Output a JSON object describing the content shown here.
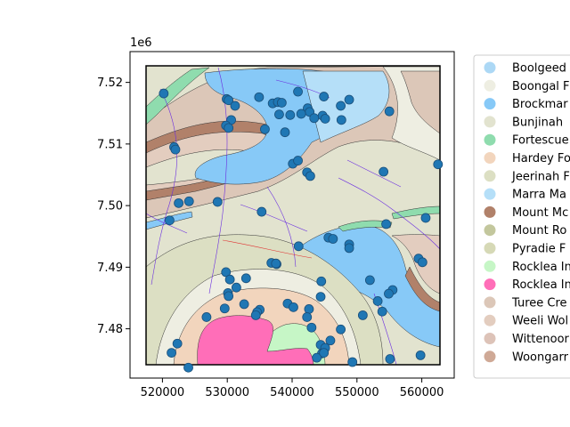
{
  "figure": {
    "axis_offset_label": "1e6",
    "x_ticks": [
      "520000",
      "530000",
      "540000",
      "550000",
      "560000"
    ],
    "y_ticks": [
      "7.48",
      "7.49",
      "7.50",
      "7.51",
      "7.52"
    ]
  },
  "legend": {
    "placement": "right, outside axes (clipped by figure edge)",
    "items": [
      {
        "label": "Boolgeed",
        "color": "#acd8f5"
      },
      {
        "label": "Boongal F",
        "color": "#eeeee2"
      },
      {
        "label": "Brockmar",
        "color": "#87c9f7"
      },
      {
        "label": "Bunjinah",
        "color": "#e2e3cf"
      },
      {
        "label": "Fortescue",
        "color": "#8fdcae"
      },
      {
        "label": "Hardey Fo",
        "color": "#f2d5bd"
      },
      {
        "label": "Jeerinah F",
        "color": "#dcdfc3"
      },
      {
        "label": "Marra Ma",
        "color": "#b5dff8"
      },
      {
        "label": "Mount Mc",
        "color": "#b1816a"
      },
      {
        "label": "Mount Ro",
        "color": "#c3c79d"
      },
      {
        "label": "Pyradie F",
        "color": "#d6d9b6"
      },
      {
        "label": "Rocklea In",
        "color": "#c6f6c6"
      },
      {
        "label": "Rocklea In",
        "color": "#ff6eb8"
      },
      {
        "label": "Turee Cre",
        "color": "#dcc7b8"
      },
      {
        "label": "Weeli Wol",
        "color": "#e3cdbf"
      },
      {
        "label": "Wittenoor",
        "color": "#ddc3b8"
      },
      {
        "label": "Woongarr",
        "color": "#cfa996"
      }
    ]
  },
  "chart_data": {
    "type": "scatter",
    "title": "",
    "xlabel": "",
    "ylabel": "",
    "x_range": [
      515000,
      565000
    ],
    "y_range": [
      7472000,
      7525000
    ],
    "map_extent": {
      "x": [
        515800,
        562500
      ],
      "y": [
        7473600,
        7521300
      ]
    },
    "point_color": "#1f77b4",
    "points": [
      [
        520200,
        7518200
      ],
      [
        529900,
        7517300
      ],
      [
        530200,
        7517100
      ],
      [
        531200,
        7516200
      ],
      [
        534900,
        7517600
      ],
      [
        537000,
        7516600
      ],
      [
        537800,
        7516800
      ],
      [
        538400,
        7516700
      ],
      [
        540900,
        7518500
      ],
      [
        544900,
        7517700
      ],
      [
        548800,
        7517200
      ],
      [
        547500,
        7516200
      ],
      [
        542400,
        7515800
      ],
      [
        542700,
        7515200
      ],
      [
        544700,
        7514600
      ],
      [
        545100,
        7514100
      ],
      [
        543400,
        7514200
      ],
      [
        541400,
        7514900
      ],
      [
        539700,
        7514700
      ],
      [
        538000,
        7514800
      ],
      [
        530600,
        7513900
      ],
      [
        529800,
        7513000
      ],
      [
        530200,
        7512600
      ],
      [
        535800,
        7512400
      ],
      [
        538900,
        7511900
      ],
      [
        547600,
        7513900
      ],
      [
        555000,
        7515300
      ],
      [
        521800,
        7509500
      ],
      [
        522000,
        7509100
      ],
      [
        554100,
        7505500
      ],
      [
        562500,
        7506700
      ],
      [
        540100,
        7506800
      ],
      [
        540900,
        7507300
      ],
      [
        542300,
        7505400
      ],
      [
        542800,
        7504800
      ],
      [
        522500,
        7500400
      ],
      [
        524100,
        7500700
      ],
      [
        528500,
        7500600
      ],
      [
        535300,
        7499000
      ],
      [
        521100,
        7497600
      ],
      [
        554500,
        7497000
      ],
      [
        560600,
        7498000
      ],
      [
        541000,
        7493400
      ],
      [
        545600,
        7494800
      ],
      [
        546300,
        7494600
      ],
      [
        548800,
        7493700
      ],
      [
        548800,
        7493100
      ],
      [
        536800,
        7490700
      ],
      [
        537600,
        7490500
      ],
      [
        529800,
        7489200
      ],
      [
        544500,
        7487700
      ],
      [
        530400,
        7488000
      ],
      [
        531400,
        7486700
      ],
      [
        532900,
        7488200
      ],
      [
        530100,
        7485800
      ],
      [
        530200,
        7485300
      ],
      [
        552000,
        7487900
      ],
      [
        555500,
        7486300
      ],
      [
        554900,
        7485700
      ],
      [
        559500,
        7491400
      ],
      [
        560100,
        7490800
      ],
      [
        553200,
        7484500
      ],
      [
        532600,
        7484000
      ],
      [
        535000,
        7483100
      ],
      [
        534600,
        7482700
      ],
      [
        534400,
        7482200
      ],
      [
        529600,
        7483300
      ],
      [
        526800,
        7481900
      ],
      [
        539300,
        7484100
      ],
      [
        540200,
        7483500
      ],
      [
        542600,
        7483200
      ],
      [
        544400,
        7485200
      ],
      [
        542300,
        7481900
      ],
      [
        543000,
        7480200
      ],
      [
        553900,
        7482800
      ],
      [
        550900,
        7482200
      ],
      [
        547500,
        7479900
      ],
      [
        545900,
        7478100
      ],
      [
        522300,
        7477600
      ],
      [
        521400,
        7476100
      ],
      [
        544400,
        7477400
      ],
      [
        545100,
        7476900
      ],
      [
        544600,
        7476000
      ],
      [
        543800,
        7475300
      ],
      [
        549300,
        7474600
      ],
      [
        555100,
        7475100
      ],
      [
        559800,
        7475700
      ],
      [
        524000,
        7473700
      ],
      [
        544900,
        7476100
      ],
      [
        537500,
        7490600
      ]
    ]
  }
}
